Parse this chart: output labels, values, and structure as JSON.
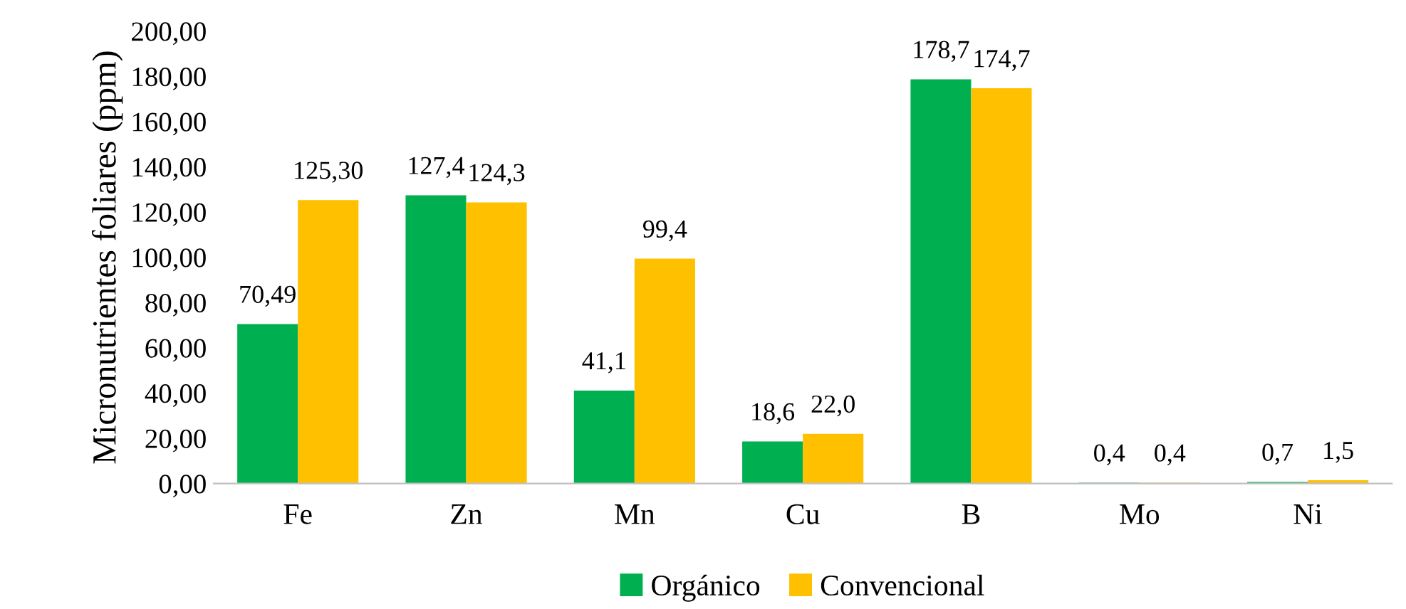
{
  "chart_data": {
    "type": "bar",
    "ylabel": "Micronutrientes foliares (ppm)",
    "categories": [
      "Fe",
      "Zn",
      "Mn",
      "Cu",
      "B",
      "Mo",
      "Ni"
    ],
    "series": [
      {
        "name": "Orgánico",
        "color": "#00b050",
        "values": [
          70.49,
          127.4,
          41.1,
          18.6,
          178.7,
          0.4,
          0.7
        ],
        "value_labels": [
          "70,49",
          "127,4",
          "41,1",
          "18,6",
          "178,7",
          "0,4",
          "0,7"
        ]
      },
      {
        "name": "Convencional",
        "color": "#ffc000",
        "values": [
          125.3,
          124.3,
          99.4,
          22.0,
          174.7,
          0.4,
          1.5
        ],
        "value_labels": [
          "125,30",
          "124,3",
          "99,4",
          "22,0",
          "174,7",
          "0,4",
          "1,5"
        ]
      }
    ],
    "ylim": [
      0,
      200
    ],
    "yticks": [
      {
        "value": 0,
        "label": "0,00"
      },
      {
        "value": 20,
        "label": "20,00"
      },
      {
        "value": 40,
        "label": "40,00"
      },
      {
        "value": 60,
        "label": "60,00"
      },
      {
        "value": 80,
        "label": "80,00"
      },
      {
        "value": 100,
        "label": "100,00"
      },
      {
        "value": 120,
        "label": "120,00"
      },
      {
        "value": 140,
        "label": "140,00"
      },
      {
        "value": 160,
        "label": "160,00"
      },
      {
        "value": 180,
        "label": "180,00"
      },
      {
        "value": 200,
        "label": "200,00"
      }
    ],
    "grid": false,
    "legend": "bottom"
  }
}
